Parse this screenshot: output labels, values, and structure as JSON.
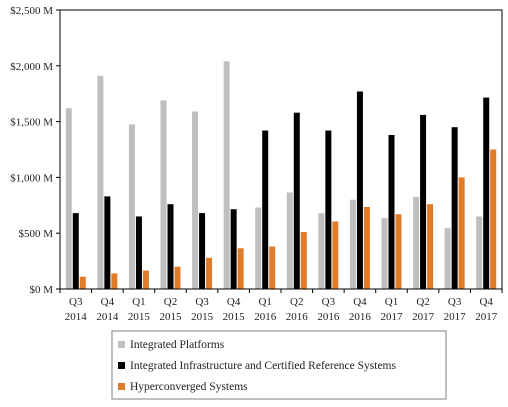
{
  "colors": {
    "integrated_platforms": "#bfbfbf",
    "integrated_infrastructure": "#000000",
    "hyperconverged": "#e07b2a",
    "axis": "#000000"
  },
  "chart_data": {
    "type": "bar",
    "title": "",
    "xlabel": "",
    "ylabel": "",
    "ylim": [
      0,
      2500
    ],
    "y_ticks": [
      {
        "value": 0,
        "label": "$0 M"
      },
      {
        "value": 500,
        "label": "$500 M"
      },
      {
        "value": 1000,
        "label": "$1,000 M"
      },
      {
        "value": 1500,
        "label": "$1,500 M"
      },
      {
        "value": 2000,
        "label": "$2,000 M"
      },
      {
        "value": 2500,
        "label": "$2,500 M"
      }
    ],
    "categories": [
      {
        "quarter": "Q3",
        "year": "2014"
      },
      {
        "quarter": "Q4",
        "year": "2014"
      },
      {
        "quarter": "Q1",
        "year": "2015"
      },
      {
        "quarter": "Q2",
        "year": "2015"
      },
      {
        "quarter": "Q3",
        "year": "2015"
      },
      {
        "quarter": "Q4",
        "year": "2015"
      },
      {
        "quarter": "Q1",
        "year": "2016"
      },
      {
        "quarter": "Q2",
        "year": "2016"
      },
      {
        "quarter": "Q3",
        "year": "2016"
      },
      {
        "quarter": "Q4",
        "year": "2016"
      },
      {
        "quarter": "Q1",
        "year": "2017"
      },
      {
        "quarter": "Q2",
        "year": "2017"
      },
      {
        "quarter": "Q3",
        "year": "2017"
      },
      {
        "quarter": "Q4",
        "year": "2017"
      }
    ],
    "series": [
      {
        "name": "Integrated Platforms",
        "color": "#bfbfbf",
        "values": [
          1620,
          1910,
          1475,
          1690,
          1590,
          2040,
          730,
          865,
          680,
          800,
          635,
          825,
          545,
          650
        ]
      },
      {
        "name": "Integrated Infrastructure and Certified Reference Systems",
        "color": "#000000",
        "values": [
          680,
          830,
          650,
          760,
          680,
          715,
          1420,
          1580,
          1420,
          1770,
          1380,
          1560,
          1450,
          1715
        ]
      },
      {
        "name": "Hyperconverged Systems",
        "color": "#e07b2a",
        "values": [
          110,
          140,
          165,
          200,
          280,
          365,
          380,
          510,
          605,
          735,
          670,
          760,
          1000,
          1250
        ]
      }
    ],
    "legend_position": "bottom",
    "grid": false
  }
}
